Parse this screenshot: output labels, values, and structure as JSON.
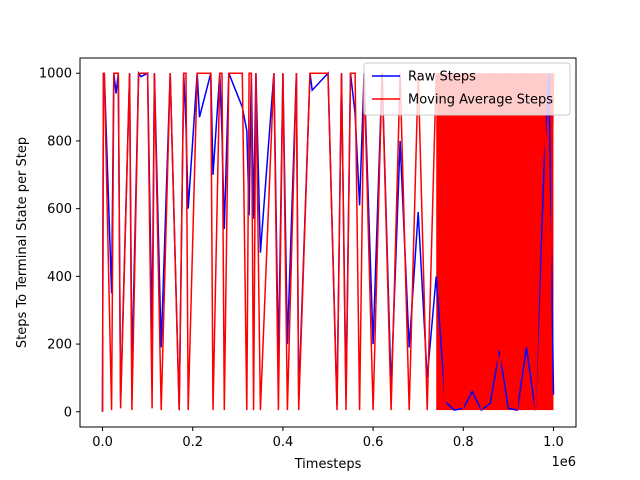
{
  "chart_data": {
    "type": "line",
    "title": "",
    "xlabel": "Timesteps",
    "ylabel": "Steps To Terminal State per Step",
    "x_offset_label": "1e6",
    "xlim": [
      -0.05,
      1.05
    ],
    "ylim": [
      -45,
      1045
    ],
    "x_ticks": [
      0.0,
      0.2,
      0.4,
      0.6,
      0.8,
      1.0
    ],
    "x_tick_labels": [
      "0.0",
      "0.2",
      "0.4",
      "0.6",
      "0.8",
      "1.0"
    ],
    "y_ticks": [
      0,
      200,
      400,
      600,
      800,
      1000
    ],
    "y_tick_labels": [
      "0",
      "200",
      "400",
      "600",
      "800",
      "1000"
    ],
    "grid": false,
    "legend_position": "top-right",
    "series": [
      {
        "name": "Raw Steps",
        "color": "#0000ff",
        "x": [
          0.0,
          0.002,
          0.004,
          0.02,
          0.025,
          0.03,
          0.035,
          0.04,
          0.06,
          0.065,
          0.08,
          0.085,
          0.1,
          0.11,
          0.115,
          0.13,
          0.15,
          0.17,
          0.18,
          0.185,
          0.19,
          0.21,
          0.215,
          0.24,
          0.245,
          0.26,
          0.265,
          0.27,
          0.28,
          0.31,
          0.32,
          0.325,
          0.33,
          0.335,
          0.34,
          0.35,
          0.38,
          0.39,
          0.4,
          0.41,
          0.43,
          0.435,
          0.46,
          0.465,
          0.5,
          0.52,
          0.53,
          0.54,
          0.55,
          0.56,
          0.57,
          0.58,
          0.6,
          0.62,
          0.64,
          0.66,
          0.68,
          0.7,
          0.72,
          0.74,
          0.76,
          0.78,
          0.8,
          0.82,
          0.84,
          0.86,
          0.88,
          0.9,
          0.92,
          0.94,
          0.96,
          0.98,
          0.99,
          1.0
        ],
        "y": [
          0,
          1000,
          1000,
          350,
          1000,
          940,
          1000,
          30,
          1000,
          120,
          1000,
          990,
          1000,
          230,
          1000,
          190,
          1000,
          5,
          1000,
          840,
          600,
          1000,
          870,
          1000,
          700,
          1000,
          820,
          540,
          1000,
          900,
          830,
          580,
          1000,
          570,
          1000,
          470,
          1000,
          150,
          1000,
          200,
          1000,
          40,
          1000,
          950,
          1000,
          20,
          1000,
          50,
          1000,
          880,
          610,
          1000,
          200,
          1000,
          70,
          800,
          190,
          590,
          100,
          400,
          30,
          5,
          10,
          60,
          5,
          25,
          180,
          10,
          5,
          190,
          5,
          750,
          1000,
          50
        ]
      },
      {
        "name": "Moving Average Steps",
        "color": "#ff0000",
        "x": [
          0.0,
          0.002,
          0.004,
          0.02,
          0.025,
          0.03,
          0.035,
          0.04,
          0.06,
          0.065,
          0.08,
          0.085,
          0.1,
          0.11,
          0.115,
          0.13,
          0.15,
          0.17,
          0.18,
          0.185,
          0.19,
          0.21,
          0.215,
          0.24,
          0.245,
          0.26,
          0.265,
          0.27,
          0.28,
          0.31,
          0.32,
          0.325,
          0.33,
          0.335,
          0.34,
          0.35,
          0.38,
          0.39,
          0.4,
          0.41,
          0.43,
          0.435,
          0.46,
          0.465,
          0.5,
          0.52,
          0.53,
          0.54,
          0.55,
          0.56,
          0.57,
          0.58,
          0.6,
          0.62,
          0.64,
          0.66,
          0.68,
          0.7,
          0.72,
          0.74,
          0.76,
          0.78,
          0.8,
          0.82,
          0.84,
          0.86,
          0.88,
          0.9,
          0.92,
          0.94,
          0.96,
          0.98,
          0.99,
          1.0
        ],
        "y": [
          0,
          1000,
          1000,
          5,
          1000,
          1000,
          1000,
          10,
          1000,
          5,
          1000,
          1000,
          1000,
          10,
          1000,
          5,
          1000,
          5,
          1000,
          1000,
          5,
          1000,
          1000,
          1000,
          5,
          1000,
          1000,
          5,
          1000,
          1000,
          5,
          1000,
          1000,
          5,
          1000,
          5,
          1000,
          5,
          1000,
          5,
          1000,
          5,
          1000,
          1000,
          1000,
          5,
          1000,
          5,
          1000,
          1000,
          5,
          1000,
          5,
          1000,
          5,
          1000,
          5,
          1000,
          5,
          1000,
          5,
          1000,
          5,
          1000,
          5,
          1000,
          5,
          1000,
          5,
          1000,
          5,
          1000,
          5,
          1000
        ]
      }
    ],
    "fill_region": {
      "series": "Moving Average Steps",
      "x_range": [
        0.74,
        1.0
      ],
      "y_range": [
        5,
        1000
      ]
    }
  }
}
